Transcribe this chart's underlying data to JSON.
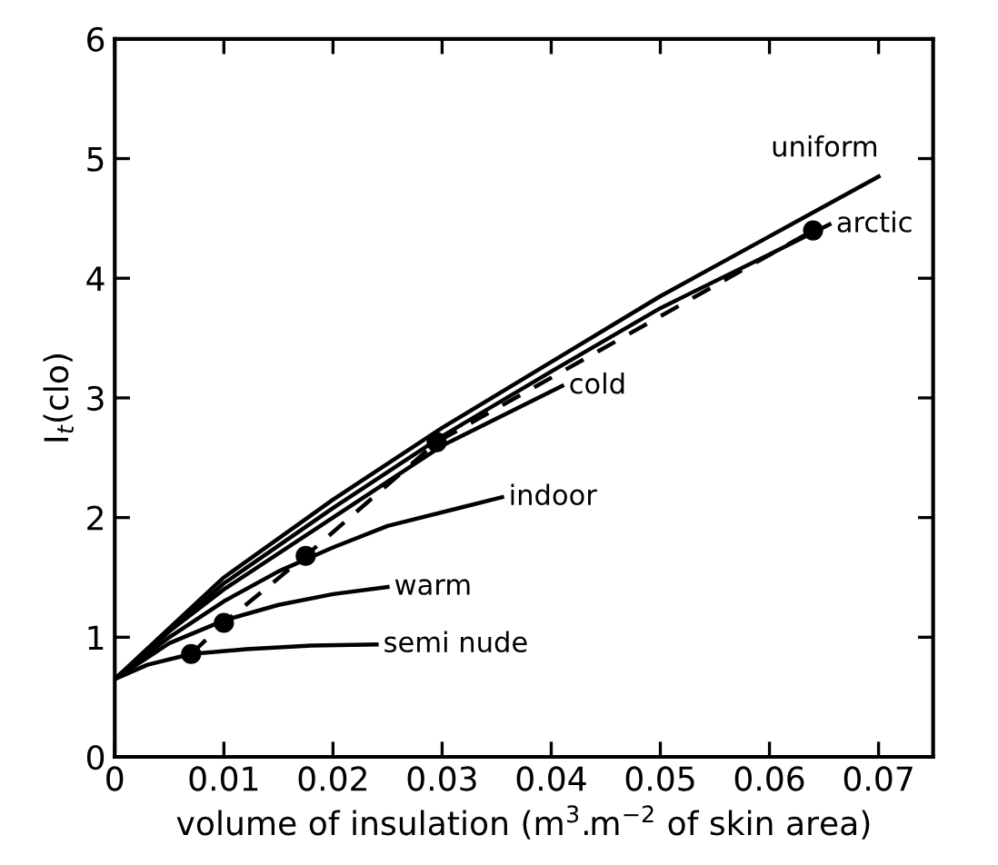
{
  "chart_data": {
    "type": "line",
    "xlabel": "volume of insulation (m$^{3}$.m$^{−2}$ of skin area)",
    "ylabel": "I$_{t}$(clo)",
    "xlim": [
      0,
      0.075
    ],
    "ylim": [
      0,
      6
    ],
    "xticks": [
      0,
      0.01,
      0.02,
      0.03,
      0.04,
      0.05,
      0.06,
      0.07
    ],
    "yticks": [
      0,
      1,
      2,
      3,
      4,
      5,
      6
    ],
    "grid": false,
    "marker": "none",
    "line_style": "solid",
    "series": [
      {
        "name": "semi nude",
        "color": "#000000",
        "x": [
          0,
          0.003,
          0.007,
          0.012,
          0.018,
          0.024
        ],
        "values": [
          0.65,
          0.77,
          0.86,
          0.9,
          0.93,
          0.94
        ]
      },
      {
        "name": "warm",
        "color": "#000000",
        "x": [
          0,
          0.005,
          0.01,
          0.015,
          0.02,
          0.025
        ],
        "values": [
          0.65,
          0.95,
          1.14,
          1.27,
          1.36,
          1.42
        ]
      },
      {
        "name": "indoor",
        "color": "#000000",
        "x": [
          0,
          0.005,
          0.01,
          0.015,
          0.02,
          0.025,
          0.0355
        ],
        "values": [
          0.65,
          1.0,
          1.3,
          1.55,
          1.75,
          1.93,
          2.17
        ]
      },
      {
        "name": "cold",
        "color": "#000000",
        "x": [
          0,
          0.005,
          0.01,
          0.02,
          0.03,
          0.041
        ],
        "values": [
          0.65,
          1.05,
          1.4,
          2.0,
          2.6,
          3.1
        ]
      },
      {
        "name": "arctic",
        "color": "#000000",
        "x": [
          0,
          0.01,
          0.02,
          0.03,
          0.04,
          0.05,
          0.06,
          0.0655
        ],
        "values": [
          0.65,
          1.45,
          2.08,
          2.68,
          3.22,
          3.75,
          4.2,
          4.45
        ]
      },
      {
        "name": "uniform",
        "color": "#000000",
        "x": [
          0,
          0.01,
          0.02,
          0.03,
          0.04,
          0.05,
          0.06,
          0.07
        ],
        "values": [
          0.65,
          1.5,
          2.15,
          2.75,
          3.3,
          3.85,
          4.35,
          4.85
        ]
      },
      {
        "color": "#000000",
        "marker": "circle",
        "line_style": "dashed",
        "x": [
          0.007,
          0.01,
          0.0175,
          0.0295,
          0.064
        ],
        "values": [
          0.86,
          1.12,
          1.68,
          2.63,
          4.4
        ]
      }
    ]
  }
}
